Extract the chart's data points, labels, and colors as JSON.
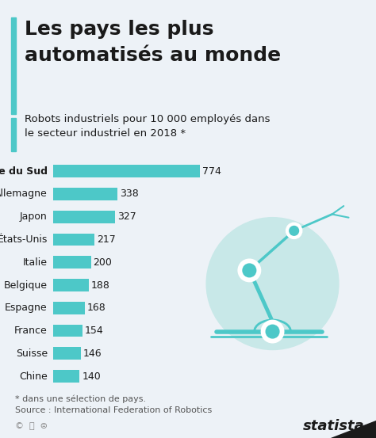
{
  "title_line1": "Les pays les plus",
  "title_line2": "automatisés au monde",
  "subtitle": "Robots industriels pour 10 000 employés dans\nle secteur industriel en 2018 *",
  "footnote_line1": "* dans une sélection de pays.",
  "footnote_line2": "Source : International Federation of Robotics",
  "countries": [
    "Corée du Sud",
    "Allemagne",
    "Japon",
    "États-Unis",
    "Italie",
    "Belgique",
    "Espagne",
    "France",
    "Suisse",
    "Chine"
  ],
  "values": [
    774,
    338,
    327,
    217,
    200,
    188,
    168,
    154,
    146,
    140
  ],
  "bar_color": "#4dc8c8",
  "background_color": "#edf2f7",
  "accent_color": "#4dc8c8",
  "robot_circle_color": "#c8e8e8",
  "robot_line_color": "#4dc8c8",
  "text_dark": "#1a1a1a",
  "text_gray": "#555555",
  "title_fontsize": 18,
  "subtitle_fontsize": 9.5,
  "bar_label_fontsize": 9,
  "country_fontsize": 9,
  "footnote_fontsize": 8
}
